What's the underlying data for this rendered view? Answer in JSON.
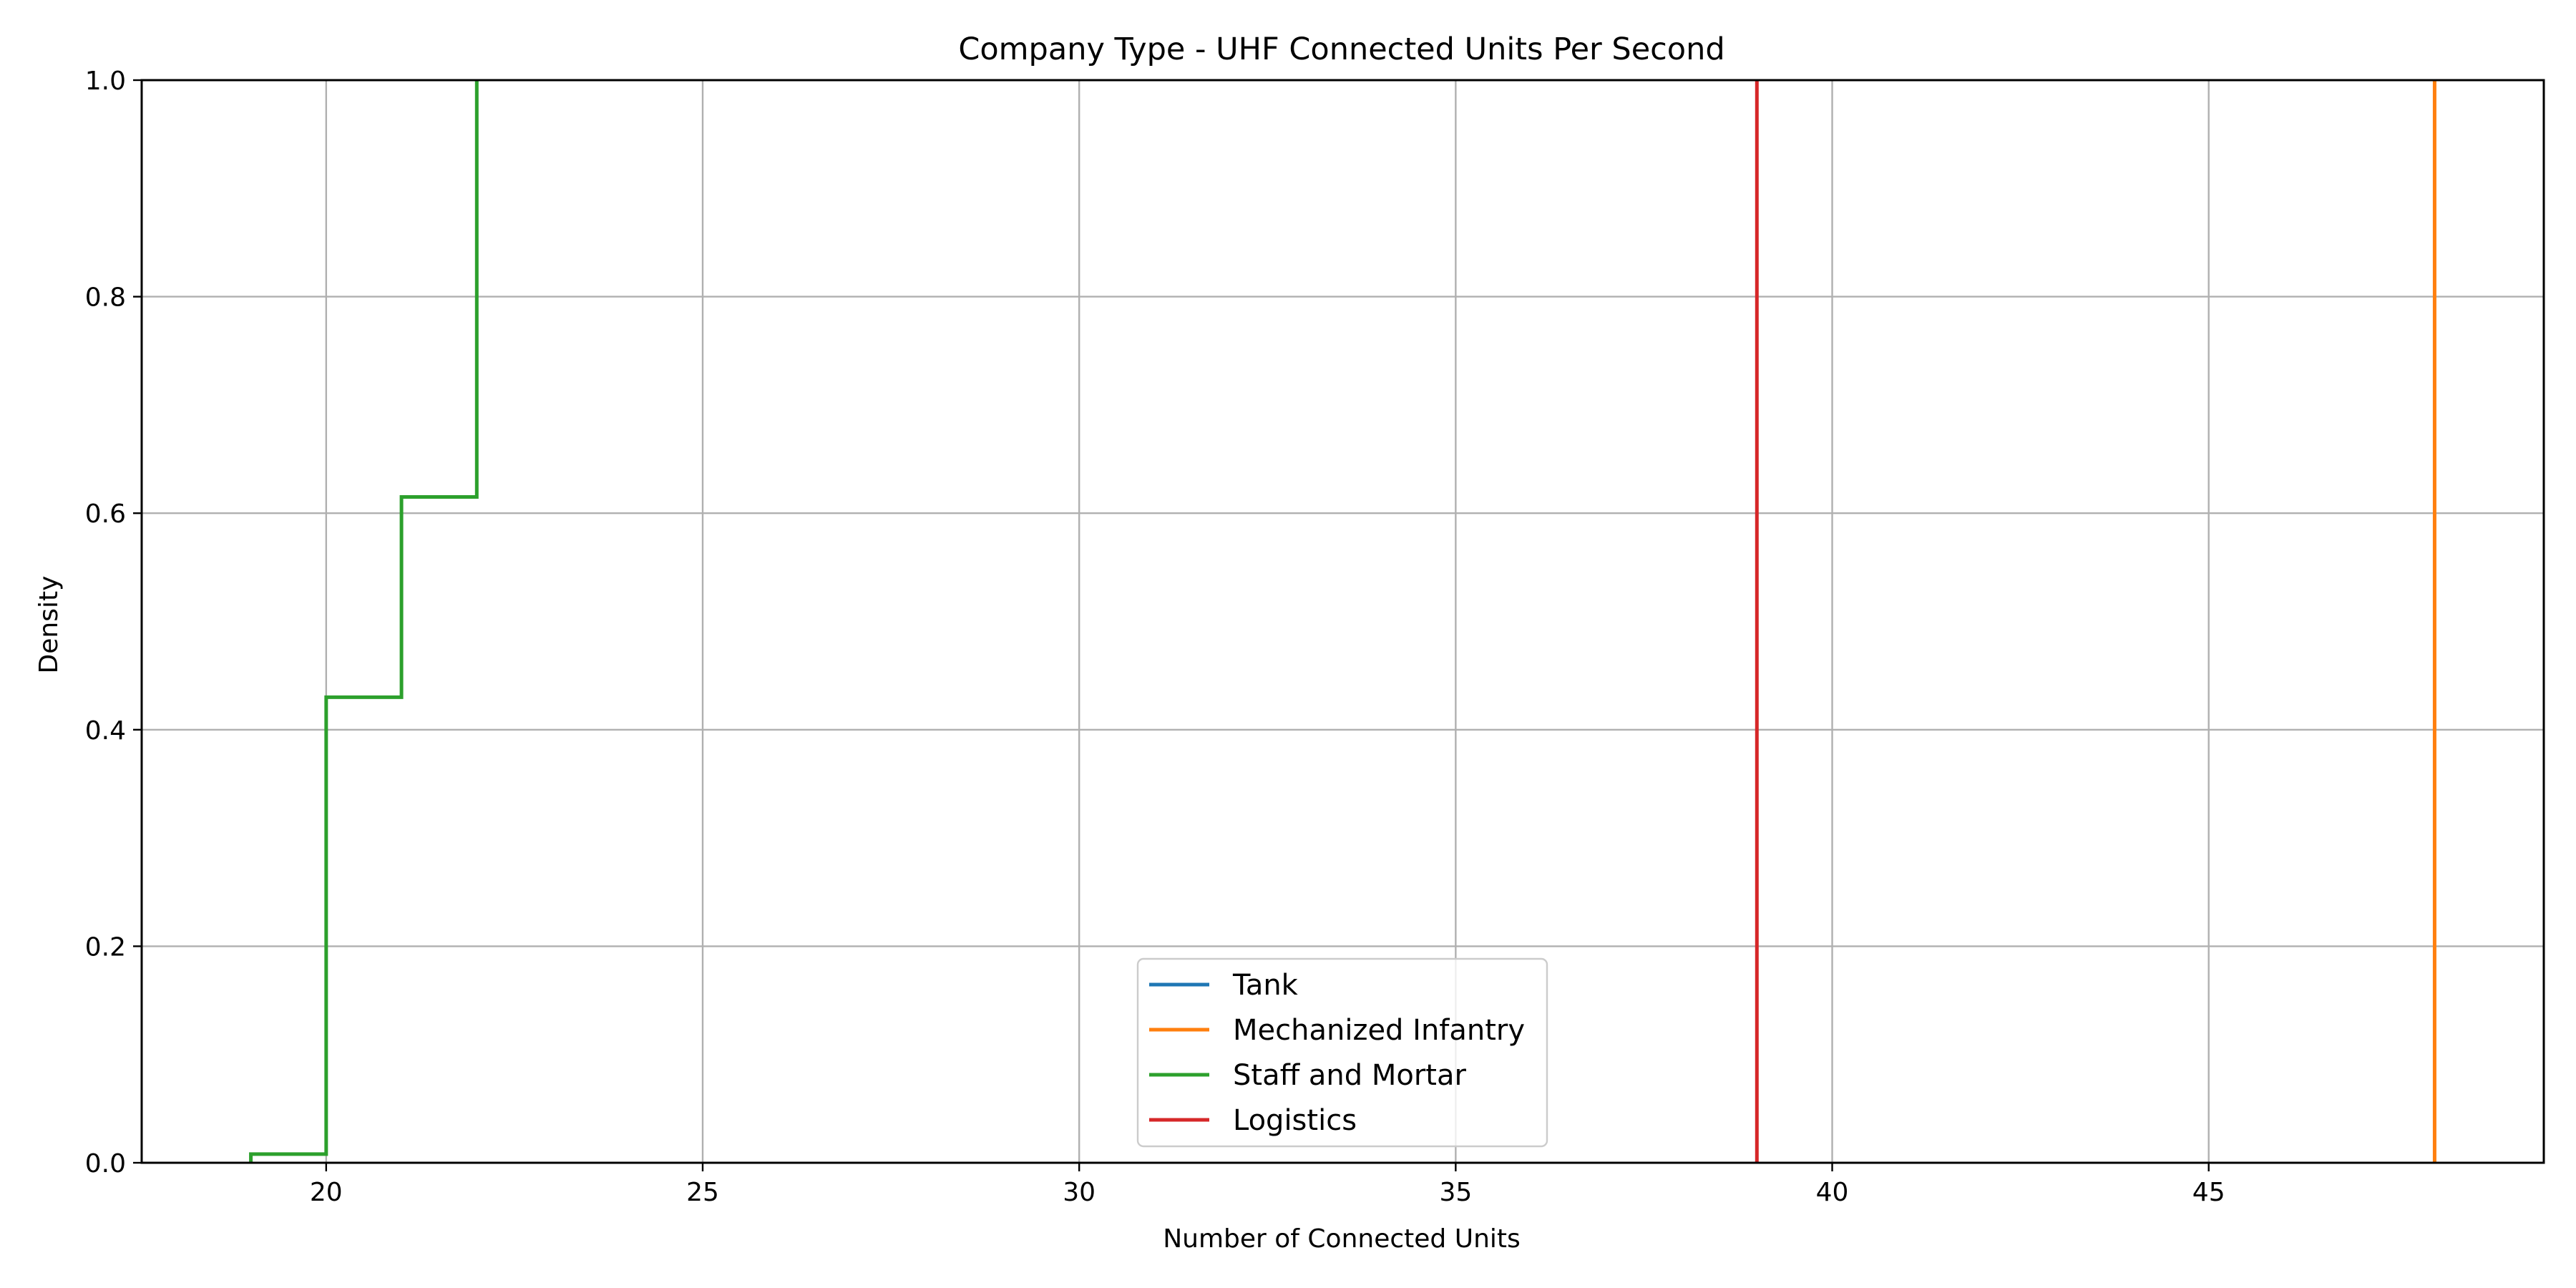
{
  "chart_data": {
    "type": "line",
    "title": "Company Type - UHF Connected Units Per Second",
    "xlabel": "Number of Connected Units",
    "ylabel": "Density",
    "xlim": [
      17.55,
      49.45
    ],
    "ylim": [
      0,
      1.0
    ],
    "xticks": [
      20,
      25,
      30,
      35,
      40,
      45
    ],
    "yticks": [
      0.0,
      0.2,
      0.4,
      0.6,
      0.8,
      1.0
    ],
    "xtick_labels": [
      "20",
      "25",
      "30",
      "35",
      "40",
      "45"
    ],
    "ytick_labels": [
      "0.0",
      "0.2",
      "0.4",
      "0.6",
      "0.8",
      "1.0"
    ],
    "grid": true,
    "legend_position": "lower-center",
    "series": [
      {
        "name": "Tank",
        "color": "#1f77b4",
        "drawstyle": "steps-post",
        "points": []
      },
      {
        "name": "Mechanized Infantry",
        "color": "#ff7f0e",
        "drawstyle": "steps-post",
        "points": [
          [
            48,
            0.0
          ],
          [
            48,
            1.0
          ]
        ]
      },
      {
        "name": "Staff and Mortar",
        "color": "#2ca02c",
        "drawstyle": "steps-post",
        "points": [
          [
            19,
            0.0
          ],
          [
            19,
            0.008
          ],
          [
            20,
            0.008
          ],
          [
            20,
            0.43
          ],
          [
            21,
            0.43
          ],
          [
            21,
            0.615
          ],
          [
            22,
            0.615
          ],
          [
            22,
            1.0
          ]
        ]
      },
      {
        "name": "Logistics",
        "color": "#d62728",
        "drawstyle": "steps-post",
        "points": [
          [
            39,
            0.0
          ],
          [
            39,
            1.0
          ]
        ]
      }
    ]
  }
}
